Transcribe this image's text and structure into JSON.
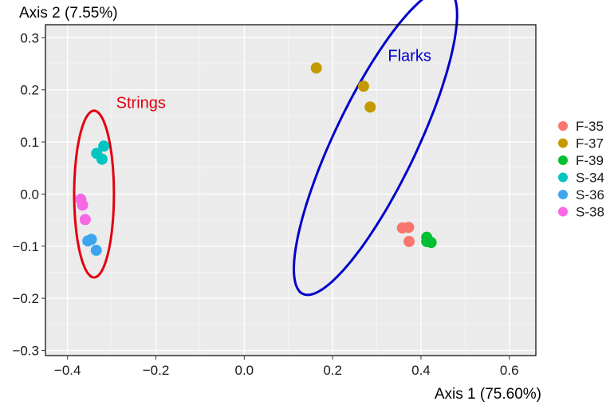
{
  "chart_data": {
    "type": "scatter",
    "xlabel": "Axis 1 (75.60%)",
    "ylabel": "Axis 2 (7.55%)",
    "xlim": [
      -0.45,
      0.66
    ],
    "ylim": [
      -0.31,
      0.325
    ],
    "xticks": [
      -0.4,
      -0.2,
      0.0,
      0.2,
      0.4,
      0.6
    ],
    "xtick_labels": [
      "−0.4",
      "−0.2",
      "0.0",
      "0.2",
      "0.4",
      "0.6"
    ],
    "yticks": [
      0.3,
      0.2,
      0.1,
      0.0,
      -0.1,
      -0.2,
      -0.3
    ],
    "ytick_labels": [
      "0.3",
      "0.2",
      "0.1",
      "0.0",
      "−0.1",
      "−0.2",
      "−0.3"
    ],
    "grid": true,
    "legend_position": "right",
    "series": [
      {
        "name": "F-35",
        "color": "#F8766D",
        "points": [
          [
            0.358,
            -0.065
          ],
          [
            0.372,
            -0.064
          ],
          [
            0.373,
            -0.091
          ]
        ]
      },
      {
        "name": "F-37",
        "color": "#C49A00",
        "points": [
          [
            0.163,
            0.242
          ],
          [
            0.27,
            0.207
          ],
          [
            0.285,
            0.167
          ]
        ]
      },
      {
        "name": "F-39",
        "color": "#00C031",
        "points": [
          [
            0.413,
            -0.083
          ],
          [
            0.413,
            -0.091
          ],
          [
            0.423,
            -0.093
          ]
        ]
      },
      {
        "name": "S-34",
        "color": "#00C5C0",
        "points": [
          [
            -0.318,
            0.092
          ],
          [
            -0.334,
            0.078
          ],
          [
            -0.322,
            0.067
          ]
        ]
      },
      {
        "name": "S-36",
        "color": "#3DA5F0",
        "points": [
          [
            -0.346,
            -0.087
          ],
          [
            -0.354,
            -0.09
          ],
          [
            -0.335,
            -0.108
          ]
        ]
      },
      {
        "name": "S-38",
        "color": "#F767E6",
        "points": [
          [
            -0.37,
            -0.01
          ],
          [
            -0.366,
            -0.021
          ],
          [
            -0.36,
            -0.049
          ]
        ]
      }
    ],
    "annotations": [
      {
        "label": "Strings",
        "color": "#E3000F",
        "text_x": -0.29,
        "text_y": 0.165,
        "ellipse": {
          "cx": -0.34,
          "cy": 0.0,
          "rx": 0.045,
          "ry": 0.16,
          "angle_deg": 0
        }
      },
      {
        "label": "Flarks",
        "color": "#0000CC",
        "text_x": 0.325,
        "text_y": 0.255,
        "ellipse": {
          "cx": 0.297,
          "cy": 0.1,
          "rx": 0.09,
          "ry": 0.335,
          "angle_deg": -30
        }
      }
    ]
  }
}
